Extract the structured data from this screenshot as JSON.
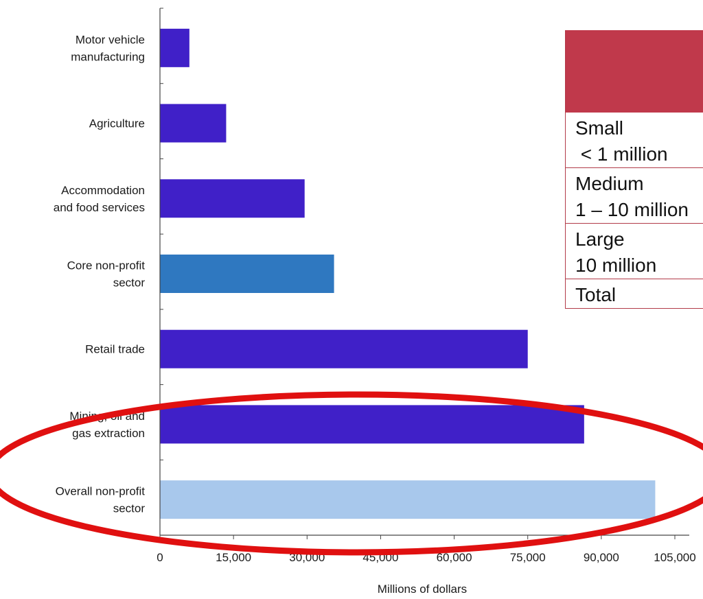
{
  "chart_data": {
    "type": "bar",
    "orientation": "horizontal",
    "categories": [
      [
        "Motor vehicle",
        "manufacturing"
      ],
      [
        "Agriculture"
      ],
      [
        "Accommodation",
        "and food services"
      ],
      [
        "Core non-profit",
        "sector"
      ],
      [
        "Retail trade"
      ],
      [
        "Mining, oil and",
        "gas extraction"
      ],
      [
        "Overall non-profit",
        "sector"
      ]
    ],
    "values": [
      6000,
      13500,
      29500,
      35500,
      75000,
      86500,
      101000
    ],
    "bar_colors": [
      "#4020c8",
      "#4020c8",
      "#4020c8",
      "#2f78c0",
      "#4020c8",
      "#4020c8",
      "#a8c8ec"
    ],
    "xlabel": "Millions of dollars",
    "xlim": [
      0,
      105000
    ],
    "xticks": [
      0,
      15000,
      30000,
      45000,
      60000,
      75000,
      90000,
      105000
    ],
    "xtick_labels": [
      "0",
      "15,000",
      "30,000",
      "45,000",
      "60,000",
      "75,000",
      "90,000",
      "105,000"
    ],
    "grid": false,
    "highlight_color": "#e01010",
    "highlighted_categories": [
      "Mining, oil and gas extraction",
      "Overall non-profit sector"
    ]
  },
  "size_table": {
    "accent_color": "#c0394b",
    "rows": [
      {
        "name": "Small",
        "range": " < 1 million"
      },
      {
        "name": "Medium",
        "range": "1 – 10 million"
      },
      {
        "name": "Large",
        "range": "10 million"
      },
      {
        "name": "Total",
        "range": ""
      }
    ]
  }
}
